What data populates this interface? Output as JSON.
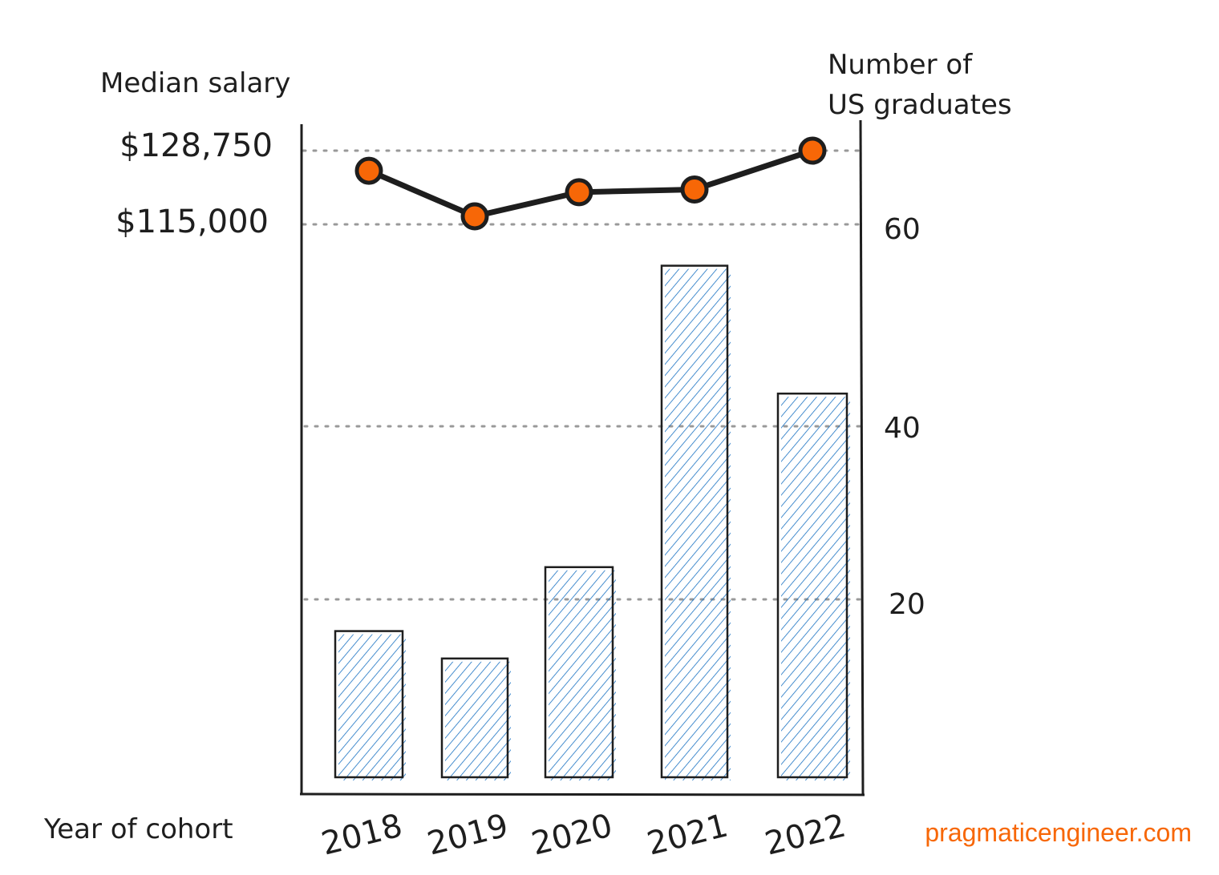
{
  "chart_data": {
    "type": "bar+line",
    "title": "",
    "xlabel": "Year of cohort",
    "ylabel_left": "Median salary",
    "ylabel_right": "Number of US graduates",
    "categories": [
      "2018",
      "2019",
      "2020",
      "2021",
      "2022"
    ],
    "series": [
      {
        "name": "Number of US graduates",
        "type": "bar",
        "axis": "right",
        "values": [
          16,
          13,
          23,
          56,
          42
        ],
        "color": "#1971c2"
      },
      {
        "name": "Median salary",
        "type": "line",
        "axis": "left",
        "values": [
          125000,
          116500,
          121000,
          121500,
          128750
        ],
        "color": "#f76707"
      }
    ],
    "left_ticks": [
      "$128,750",
      "$115,000"
    ],
    "left_tick_values": [
      128750,
      115000
    ],
    "right_ticks": [
      "60",
      "40",
      "20"
    ],
    "right_tick_values": [
      60,
      40,
      20
    ],
    "right_ylim": [
      0,
      70
    ],
    "grid": "dotted horizontal",
    "legend": "none"
  },
  "watermark": "pragmaticengineer.com"
}
